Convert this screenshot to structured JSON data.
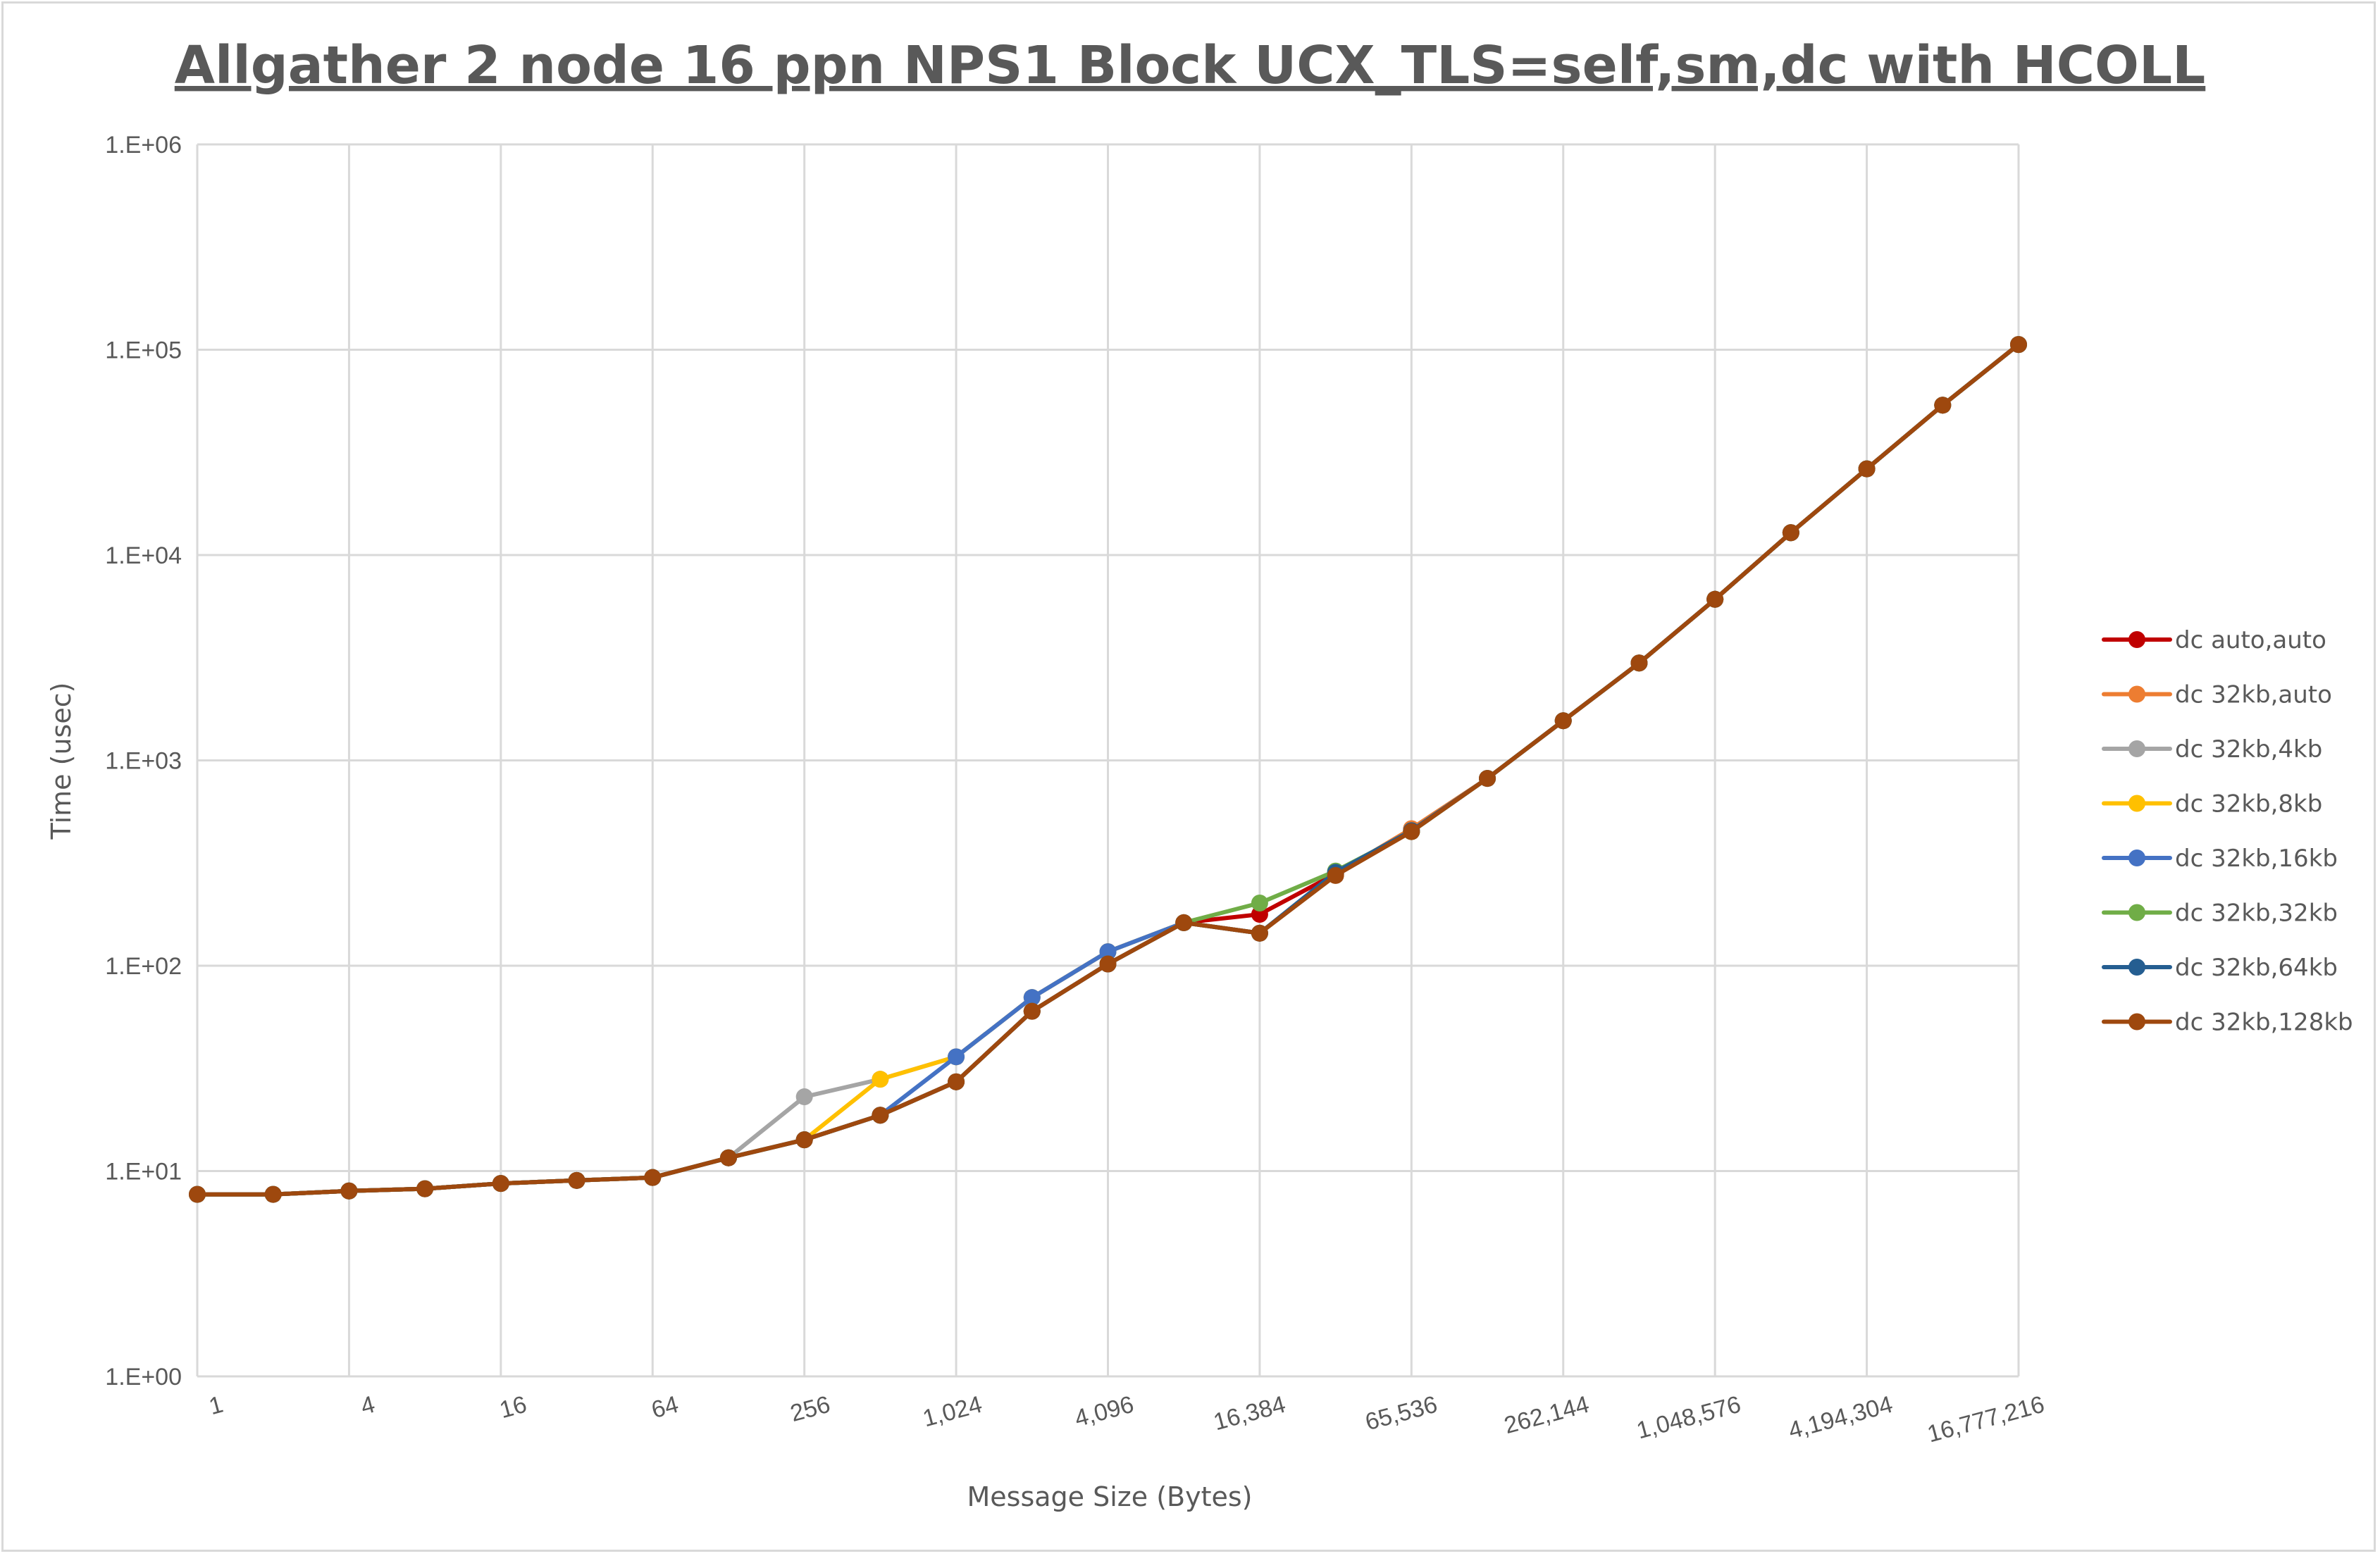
{
  "chart_data": {
    "type": "line",
    "title": "Allgather 2 node 16 ppn NPS1 Block UCX_TLS=self,sm,dc with HCOLL",
    "xlabel": "Message Size (Bytes)",
    "ylabel": "Time (usec)",
    "x_scale": "log2",
    "y_scale": "log10",
    "ylim": [
      1,
      1000000
    ],
    "grid": true,
    "legend_position": "right",
    "x": [
      1,
      2,
      4,
      8,
      16,
      32,
      64,
      128,
      256,
      512,
      1024,
      2048,
      4096,
      8192,
      16384,
      32768,
      65536,
      131072,
      262144,
      524288,
      1048576,
      2097152,
      4194304,
      8388608,
      16777216
    ],
    "x_tick_labels": [
      "1",
      "4",
      "16",
      "64",
      "256",
      "1,024",
      "4,096",
      "16,384",
      "65,536",
      "262,144",
      "1,048,576",
      "4,194,304",
      "16,777,216"
    ],
    "x_tick_values": [
      1,
      4,
      16,
      64,
      256,
      1024,
      4096,
      16384,
      65536,
      262144,
      1048576,
      4194304,
      16777216
    ],
    "y_tick_labels": [
      "1.E+00",
      "1.E+01",
      "1.E+02",
      "1.E+03",
      "1.E+04",
      "1.E+05",
      "1.E+06"
    ],
    "y_tick_values": [
      1,
      10,
      100,
      1000,
      10000,
      100000,
      1000000
    ],
    "series": [
      {
        "name": "dc auto,auto",
        "color": "#c00000",
        "values": [
          7.7,
          7.7,
          8.0,
          8.2,
          8.7,
          9.0,
          9.3,
          11.6,
          14.2,
          18.7,
          27.2,
          60,
          102,
          162,
          178,
          280,
          450,
          817,
          1560,
          2980,
          6090,
          12850,
          26300,
          53700,
          106000
        ]
      },
      {
        "name": "dc 32kb,auto",
        "color": "#ed7d31",
        "values": [
          7.7,
          7.7,
          8.0,
          8.2,
          8.7,
          9.0,
          9.3,
          11.6,
          14.2,
          18.7,
          27.2,
          60,
          102,
          162,
          144,
          280,
          465,
          817,
          1560,
          2980,
          6090,
          12850,
          26300,
          53700,
          106000
        ]
      },
      {
        "name": "dc 32kb,4kb",
        "color": "#a5a5a5",
        "values": [
          7.7,
          7.7,
          8.0,
          8.2,
          8.7,
          9.0,
          9.3,
          11.6,
          23,
          28,
          36,
          70,
          117,
          162,
          144,
          280,
          450,
          817,
          1560,
          2980,
          6090,
          12850,
          26300,
          53700,
          106000
        ]
      },
      {
        "name": "dc 32kb,8kb",
        "color": "#ffc000",
        "values": [
          7.7,
          7.7,
          8.0,
          8.2,
          8.7,
          9.0,
          9.3,
          11.6,
          14.2,
          28,
          36,
          70,
          117,
          162,
          144,
          280,
          450,
          817,
          1560,
          2980,
          6090,
          12850,
          26300,
          53700,
          106000
        ]
      },
      {
        "name": "dc 32kb,16kb",
        "color": "#4472c4",
        "values": [
          7.7,
          7.7,
          8.0,
          8.2,
          8.7,
          9.0,
          9.3,
          11.6,
          14.2,
          18.7,
          36,
          70,
          117,
          162,
          144,
          280,
          450,
          817,
          1560,
          2980,
          6090,
          12850,
          26300,
          53700,
          106000
        ]
      },
      {
        "name": "dc 32kb,32kb",
        "color": "#70ad47",
        "values": [
          7.7,
          7.7,
          8.0,
          8.2,
          8.7,
          9.0,
          9.3,
          11.6,
          14.2,
          18.7,
          27.2,
          60,
          102,
          162,
          202,
          289,
          450,
          817,
          1560,
          2980,
          6090,
          12850,
          26300,
          53700,
          106000
        ]
      },
      {
        "name": "dc 32kb,64kb",
        "color": "#255e91",
        "values": [
          7.7,
          7.7,
          8.0,
          8.2,
          8.7,
          9.0,
          9.3,
          11.6,
          14.2,
          18.7,
          27.2,
          60,
          102,
          162,
          144,
          285,
          455,
          817,
          1560,
          2980,
          6090,
          12850,
          26300,
          53700,
          106000
        ]
      },
      {
        "name": "dc 32kb,128kb",
        "color": "#9e480e",
        "values": [
          7.7,
          7.7,
          8.0,
          8.2,
          8.7,
          9.0,
          9.3,
          11.6,
          14.2,
          18.7,
          27.2,
          60,
          102,
          162,
          144,
          275,
          450,
          817,
          1560,
          2980,
          6090,
          12850,
          26300,
          53700,
          106000
        ]
      }
    ]
  }
}
